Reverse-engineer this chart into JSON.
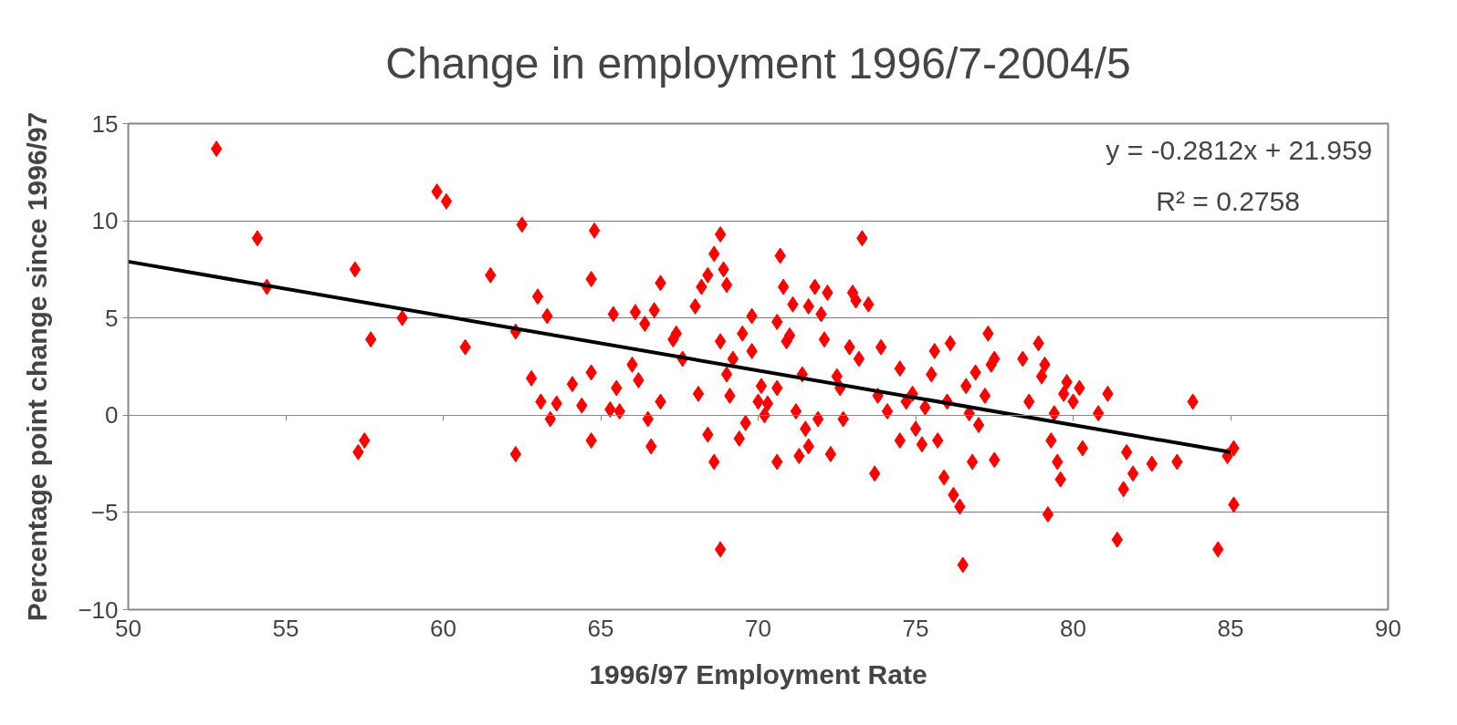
{
  "chart_data": {
    "type": "scatter",
    "title": "Change in employment 1996/7-2004/5",
    "xlabel": "1996/97 Employment Rate",
    "ylabel": "Percentage point change since 1996/97",
    "xlim": [
      50,
      90
    ],
    "xticks": [
      50,
      55,
      60,
      65,
      70,
      75,
      80,
      85,
      90
    ],
    "ylim": [
      -10,
      15
    ],
    "yticks": [
      -10,
      -5,
      0,
      5,
      10,
      15
    ],
    "grid": "y",
    "annotations": [
      "y = -0.2812x + 21.959",
      "R² = 0.2758"
    ],
    "series": [
      {
        "color": "#ff0000",
        "marker": "diamond",
        "x": [
          52.8,
          54.1,
          54.4,
          57.2,
          57.3,
          57.5,
          57.7,
          58.7,
          59.8,
          60.1,
          60.7,
          61.5,
          62.3,
          62.3,
          62.5,
          62.8,
          63.0,
          63.1,
          63.3,
          63.4,
          63.6,
          64.1,
          64.4,
          64.7,
          64.7,
          64.8,
          64.7,
          65.3,
          65.4,
          65.5,
          65.6,
          66.0,
          66.1,
          66.2,
          66.4,
          66.5,
          66.6,
          66.7,
          66.9,
          66.9,
          67.3,
          67.4,
          67.6,
          68.0,
          68.1,
          68.2,
          68.4,
          68.4,
          68.6,
          68.6,
          68.8,
          68.8,
          68.8,
          68.9,
          69.0,
          69.0,
          69.1,
          69.2,
          69.4,
          69.5,
          69.6,
          69.8,
          69.8,
          70.0,
          70.1,
          70.2,
          70.3,
          70.6,
          70.6,
          70.6,
          70.7,
          70.8,
          70.9,
          71.0,
          71.1,
          71.2,
          71.3,
          71.4,
          71.5,
          71.6,
          71.6,
          71.8,
          71.9,
          72.0,
          72.1,
          72.2,
          72.3,
          72.5,
          72.6,
          72.7,
          72.9,
          73.0,
          73.1,
          73.2,
          73.3,
          73.5,
          73.7,
          73.8,
          73.9,
          74.1,
          74.5,
          74.5,
          74.7,
          74.9,
          75.0,
          75.2,
          75.3,
          75.5,
          75.6,
          75.7,
          75.9,
          76.0,
          76.1,
          76.2,
          76.4,
          76.5,
          76.6,
          76.7,
          76.8,
          76.9,
          77.0,
          77.2,
          77.3,
          77.4,
          77.5,
          77.5,
          78.4,
          78.6,
          78.9,
          79.0,
          79.1,
          79.2,
          79.3,
          79.4,
          79.5,
          79.6,
          79.7,
          79.8,
          80.0,
          80.2,
          80.3,
          80.8,
          81.1,
          81.4,
          81.6,
          81.7,
          81.9,
          82.5,
          83.3,
          83.8,
          84.6,
          84.9,
          85.1,
          85.1
        ],
        "values": [
          13.7,
          9.1,
          6.6,
          7.5,
          -1.9,
          -1.3,
          3.9,
          5.0,
          11.5,
          11.0,
          3.5,
          7.2,
          4.3,
          -2.0,
          9.8,
          1.9,
          6.1,
          0.7,
          5.1,
          -0.2,
          0.6,
          1.6,
          0.5,
          2.2,
          7.0,
          9.5,
          -1.3,
          0.3,
          5.2,
          1.4,
          0.2,
          2.6,
          5.3,
          1.8,
          4.7,
          -0.2,
          -1.6,
          5.4,
          0.7,
          6.8,
          3.9,
          4.2,
          2.9,
          5.6,
          1.1,
          6.6,
          7.2,
          -1.0,
          8.3,
          -2.4,
          9.3,
          -6.9,
          3.8,
          7.5,
          6.7,
          2.1,
          1.0,
          2.9,
          -1.2,
          4.2,
          -0.4,
          5.1,
          3.3,
          0.7,
          1.5,
          0.0,
          0.6,
          1.4,
          -2.4,
          4.8,
          8.2,
          6.6,
          3.8,
          4.1,
          5.7,
          0.2,
          -2.1,
          2.1,
          -0.7,
          5.6,
          -1.6,
          6.6,
          -0.2,
          5.2,
          3.9,
          6.3,
          -2.0,
          2.0,
          1.4,
          -0.2,
          3.5,
          6.3,
          5.9,
          2.9,
          9.1,
          5.7,
          -3.0,
          1.0,
          3.5,
          0.2,
          2.4,
          -1.3,
          0.7,
          1.1,
          -0.7,
          -1.5,
          0.4,
          2.1,
          3.3,
          -1.3,
          -3.2,
          0.7,
          3.7,
          -4.1,
          -4.7,
          -7.7,
          1.5,
          0.1,
          -2.4,
          2.2,
          -0.5,
          1.0,
          4.2,
          2.6,
          -2.3,
          2.9,
          2.9,
          0.7,
          3.7,
          2.0,
          2.6,
          -5.1,
          -1.3,
          0.1,
          -2.4,
          -3.3,
          1.1,
          1.7,
          0.7,
          1.4,
          -1.7,
          0.1,
          1.1,
          -6.4,
          -3.8,
          -1.9,
          -3.0,
          -2.5,
          -2.4,
          0.7,
          -6.9,
          -2.1,
          -1.7,
          -4.6
        ]
      },
      {
        "type": "line",
        "color": "#000000",
        "x": [
          50,
          85
        ],
        "values": [
          7.9,
          -1.9
        ],
        "line_style": "solid"
      }
    ]
  }
}
